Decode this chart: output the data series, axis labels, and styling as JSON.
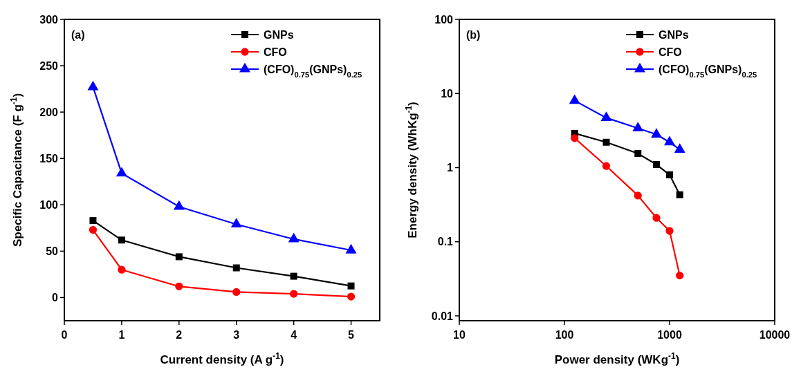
{
  "chart_data": [
    {
      "type": "line",
      "xlabel": "Current density (A g$^{-1}$)",
      "ylabel": "Specific Capacitance (F g$^{-1}$)",
      "annotations": [
        "(a)"
      ],
      "x": [
        0.5,
        1,
        2,
        3,
        4,
        5
      ],
      "xlim": [
        0,
        5.5
      ],
      "ylim": [
        -25,
        300
      ],
      "xticks": [
        0,
        1,
        2,
        3,
        4,
        5
      ],
      "yticks": [
        0,
        50,
        100,
        150,
        200,
        250,
        300
      ],
      "grid": false,
      "legend": "top right",
      "series": [
        {
          "name": "GNPs",
          "color": "#000000",
          "marker": "square",
          "values": [
            83,
            62,
            44,
            32,
            23,
            12.5
          ]
        },
        {
          "name": "CFO",
          "color": "#ff0000",
          "marker": "circle",
          "values": [
            73,
            30,
            12,
            6,
            4,
            1
          ]
        },
        {
          "name": "(CFO)$_{0.75}$(GNPs)$_{0.25}$",
          "color": "#0000ff",
          "marker": "triangle",
          "values": [
            227,
            134,
            98,
            79,
            63,
            51
          ]
        }
      ]
    },
    {
      "type": "line",
      "xlabel": "Power density (WKg$^{-1}$)",
      "ylabel": "Energy density (WhKg$^{-1}$)",
      "annotations": [
        "(b)"
      ],
      "x": [
        125,
        250,
        500,
        750,
        1000,
        1250
      ],
      "xlim": [
        10,
        10000
      ],
      "ylim": [
        0.0086,
        100
      ],
      "xticks": [
        10,
        100,
        1000,
        10000
      ],
      "yticks": [
        0.01,
        0.1,
        1,
        10,
        100
      ],
      "log": "xy",
      "grid": false,
      "legend": "top right",
      "series": [
        {
          "name": "GNPs",
          "color": "#000000",
          "marker": "square",
          "values": [
            2.9,
            2.2,
            1.55,
            1.1,
            0.8,
            0.43
          ]
        },
        {
          "name": "CFO",
          "color": "#ff0000",
          "marker": "circle",
          "values": [
            2.5,
            1.05,
            0.42,
            0.21,
            0.14,
            0.035
          ]
        },
        {
          "name": "(CFO)$_{0.75}$(GNPs)$_{0.25}$",
          "color": "#0000ff",
          "marker": "triangle",
          "values": [
            8,
            4.7,
            3.4,
            2.8,
            2.2,
            1.75
          ]
        }
      ]
    }
  ]
}
